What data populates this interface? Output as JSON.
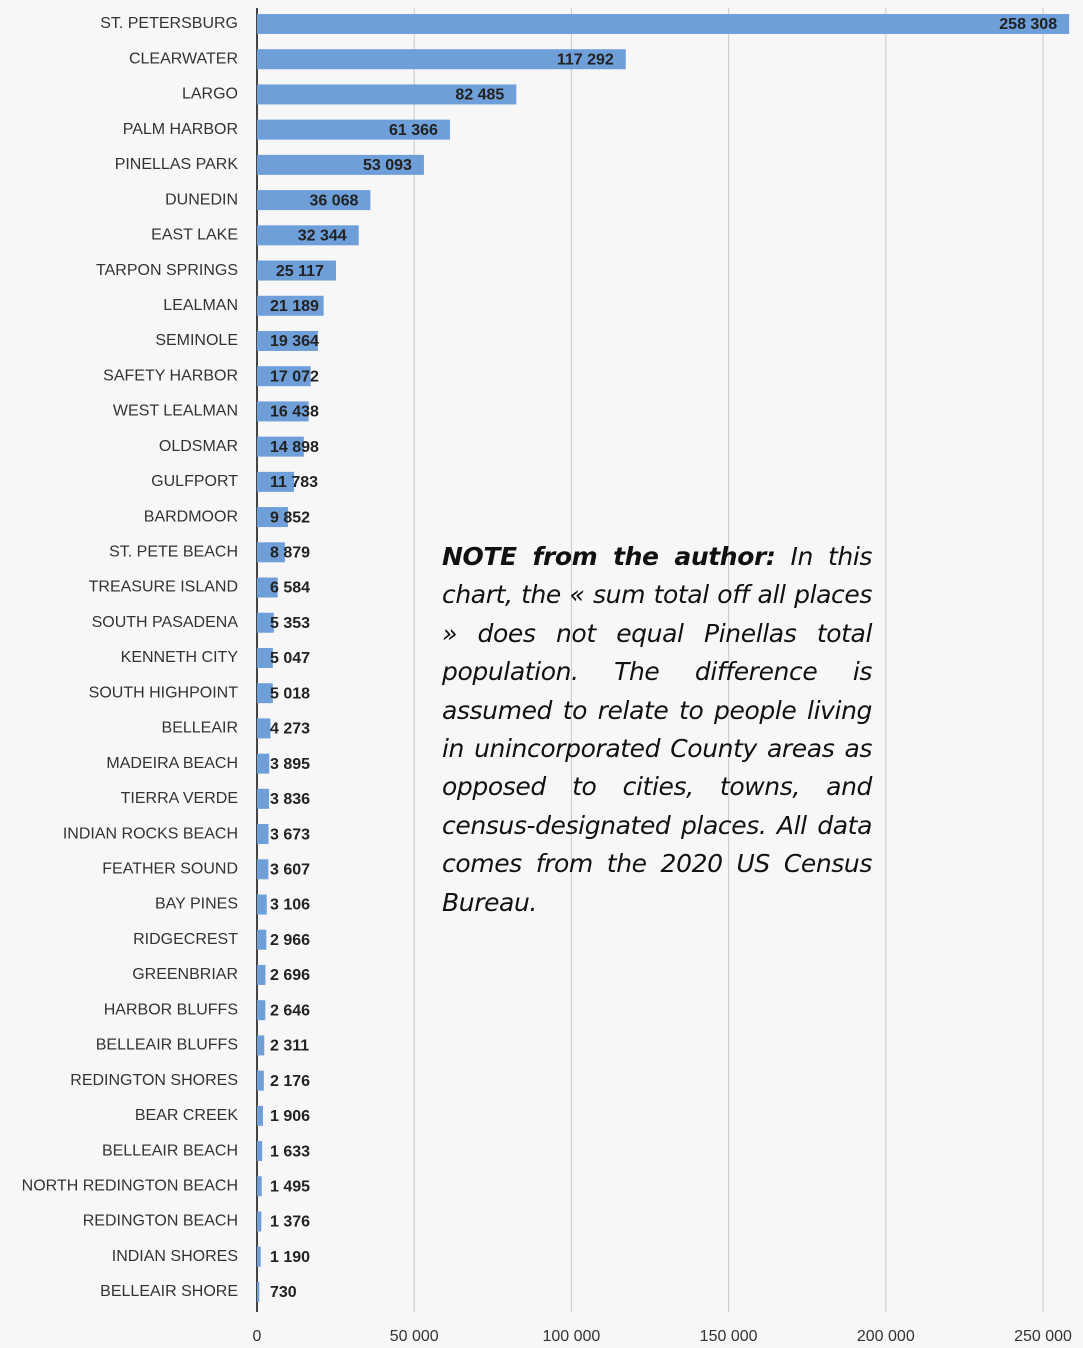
{
  "chart_data": {
    "type": "bar",
    "orientation": "horizontal",
    "categories": [
      "ST. PETERSBURG",
      "CLEARWATER",
      "LARGO",
      "PALM HARBOR",
      "PINELLAS PARK",
      "DUNEDIN",
      "EAST LAKE",
      "TARPON SPRINGS",
      "LEALMAN",
      "SEMINOLE",
      "SAFETY HARBOR",
      "WEST LEALMAN",
      "OLDSMAR",
      "GULFPORT",
      "BARDMOOR",
      "ST. PETE BEACH",
      "TREASURE ISLAND",
      "SOUTH PASADENA",
      "KENNETH CITY",
      "SOUTH HIGHPOINT",
      "BELLEAIR",
      "MADEIRA BEACH",
      "TIERRA VERDE",
      "INDIAN ROCKS BEACH",
      "FEATHER SOUND",
      "BAY PINES",
      "RIDGECREST",
      "GREENBRIAR",
      "HARBOR BLUFFS",
      "BELLEAIR BLUFFS",
      "REDINGTON SHORES",
      "BEAR CREEK",
      "BELLEAIR BEACH",
      "NORTH REDINGTON BEACH",
      "REDINGTON BEACH",
      "INDIAN SHORES",
      "BELLEAIR SHORE"
    ],
    "values": [
      258308,
      117292,
      82485,
      61366,
      53093,
      36068,
      32344,
      25117,
      21189,
      19364,
      17072,
      16438,
      14898,
      11783,
      9852,
      8879,
      6584,
      5353,
      5047,
      5018,
      4273,
      3895,
      3836,
      3673,
      3607,
      3106,
      2966,
      2696,
      2646,
      2311,
      2176,
      1906,
      1633,
      1495,
      1376,
      1190,
      730
    ],
    "value_labels": [
      "258 308",
      "117 292",
      "82 485",
      "61 366",
      "53 093",
      "36 068",
      "32 344",
      "25 117",
      "21 189",
      "19 364",
      "17 072",
      "16 438",
      "14 898",
      "11 783",
      "9 852",
      "8 879",
      "6 584",
      "5 353",
      "5 047",
      "5 018",
      "4 273",
      "3 895",
      "3 836",
      "3 673",
      "3 607",
      "3 106",
      "2 966",
      "2 696",
      "2 646",
      "2 311",
      "2 176",
      "1 906",
      "1 633",
      "1 495",
      "1 376",
      "1 190",
      "730"
    ],
    "color": "#6f9fd8",
    "xlim": [
      0,
      250000
    ],
    "xticks": [
      0,
      {
        "value": 50000,
        "label": "50 000"
      },
      {
        "value": 100000,
        "label": "100 000"
      },
      {
        "value": 150000,
        "label": "150 000"
      },
      {
        "value": 200000,
        "label": "200 000"
      },
      {
        "value": 250000,
        "label": "250 000"
      }
    ],
    "grid": true,
    "annotation_heading": "NOTE from the author:",
    "annotation": "In this chart, the « sum total off all places » does not equal  Pinellas total population. The difference is assumed to relate to people living in unincorporated County areas as opposed to cities, towns, and census-designated places. All data comes from the 2020 US Census Bureau."
  }
}
